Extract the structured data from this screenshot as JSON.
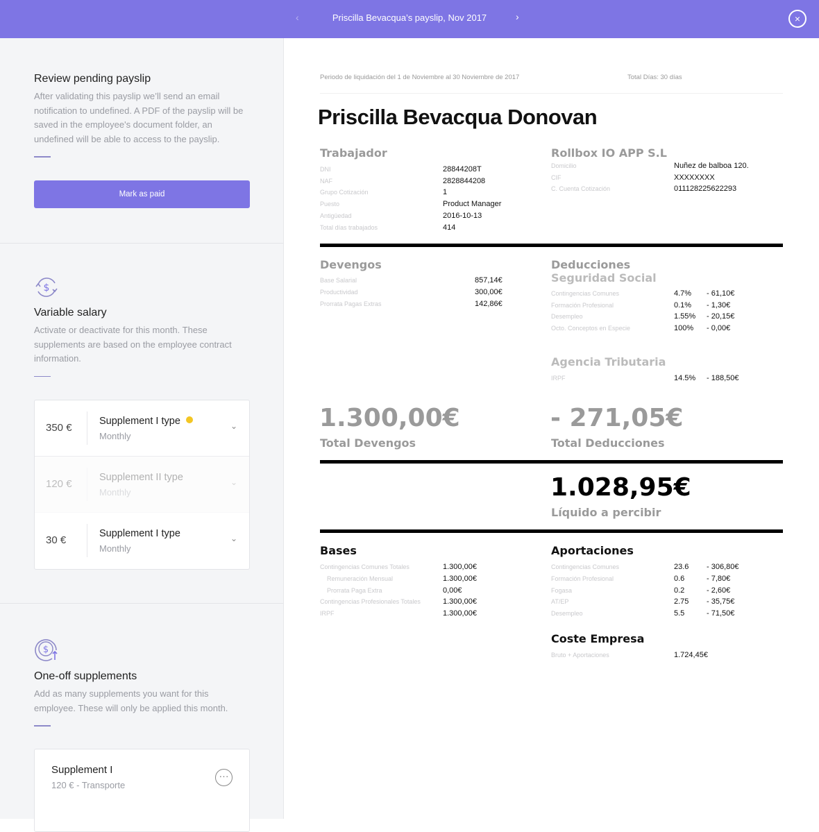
{
  "header": {
    "title": "Priscilla Bevacqua’s payslip, Nov 2017",
    "prev": "‹",
    "next": "›",
    "close": "×"
  },
  "review": {
    "title": "Review pending payslip",
    "text": "After validating this payslip we’ll send an email notification to undefined. A PDF of the payslip will be saved in the employee's document folder, an undefined will be able to access to the payslip.",
    "button": "Mark as paid"
  },
  "variable": {
    "title": "Variable salary",
    "text": "Activate or deactivate for this month. These supplements are based on the employee contract information.",
    "icon": "dollar-cycle-icon",
    "items": [
      {
        "amount": "350 €",
        "name": "Supplement I type",
        "freq": "Monthly",
        "active": true,
        "warning": true
      },
      {
        "amount": "120 €",
        "name": "Supplement II type",
        "freq": "Monthly",
        "active": false
      },
      {
        "amount": "30 €",
        "name": "Supplement I type",
        "freq": "Monthly",
        "active": true
      }
    ]
  },
  "oneoff": {
    "title": "One-off supplements",
    "text": "Add as many supplements you want for this employee. These will only be applied this month.",
    "icon": "dollar-up-icon",
    "items": [
      {
        "name": "Supplement I",
        "detail": "120 € - Transporte"
      }
    ]
  },
  "doc": {
    "period": "Periodo de liquidación del 1 de Noviembre al 30 Noviembre de 2017",
    "total_days": "Total Días: 30 días",
    "name": "Priscilla Bevacqua Donovan",
    "worker": {
      "title": "Trabajador",
      "rows": [
        [
          "DNI",
          "28844208T"
        ],
        [
          "NAF",
          "2828844208"
        ],
        [
          "Grupo Cotización",
          "1"
        ],
        [
          "Puesto",
          "Product Manager"
        ],
        [
          "Antigüedad",
          "2016-10-13"
        ],
        [
          "Total días trabajados",
          "414"
        ]
      ]
    },
    "company": {
      "title": "Rollbox IO APP S.L",
      "rows": [
        [
          "Domicilio",
          "Nuñez de balboa 120."
        ],
        [
          "CIF",
          "XXXXXXXX"
        ],
        [
          "C. Cuenta Cotización",
          "011128225622293"
        ]
      ]
    },
    "devengos": {
      "title": "Devengos",
      "rows": [
        [
          "Base Salarial",
          "857,14€"
        ],
        [
          "Productividad",
          "300,00€"
        ],
        [
          "Prorrata Pagas Extras",
          "142,86€"
        ]
      ]
    },
    "deducciones": {
      "title": "Deducciones",
      "ss_title": "Seguridad Social",
      "ss_rows": [
        [
          "Contingencias Comunes",
          "4.7%",
          "- 61,10€"
        ],
        [
          "Formación Profesional",
          "0.1%",
          "- 1,30€"
        ],
        [
          "Desempleo",
          "1.55%",
          "- 20,15€"
        ],
        [
          "Octo. Conceptos en Especie",
          "100%",
          "- 0,00€"
        ]
      ],
      "at_title": "Agencia Tributaria",
      "at_rows": [
        [
          "IRPF",
          "14.5%",
          "- 188,50€"
        ]
      ]
    },
    "total_devengos": "1.300,00€",
    "total_devengos_label": "Total Devengos",
    "total_deducciones": "- 271,05€",
    "total_deducciones_label": "Total Deducciones",
    "liquido": "1.028,95€",
    "liquido_label": "Líquido a percibir",
    "bases": {
      "title": "Bases",
      "rows": [
        [
          "Contingencias Comunes Totales",
          "1.300,00€"
        ],
        [
          "Remuneración Mensual",
          "1.300,00€"
        ],
        [
          "Prorrata Paga Extra",
          "0,00€"
        ],
        [
          "Contingencias Profesionales Totales",
          "1.300,00€"
        ],
        [
          "IRPF",
          "1.300,00€"
        ]
      ]
    },
    "aportaciones": {
      "title": "Aportaciones",
      "rows": [
        [
          "Contingencias Comunes",
          "23.6",
          "- 306,80€"
        ],
        [
          "Formación Profesional",
          "0.6",
          "- 7,80€"
        ],
        [
          "Fogasa",
          "0.2",
          "- 2,60€"
        ],
        [
          "AT/EP",
          "2.75",
          "- 35,75€"
        ],
        [
          "Desempleo",
          "5.5",
          "- 71,50€"
        ]
      ]
    },
    "coste": {
      "title": "Coste Empresa",
      "rows": [
        [
          "Bruto + Aportaciones",
          "1.724,45€"
        ]
      ]
    }
  }
}
